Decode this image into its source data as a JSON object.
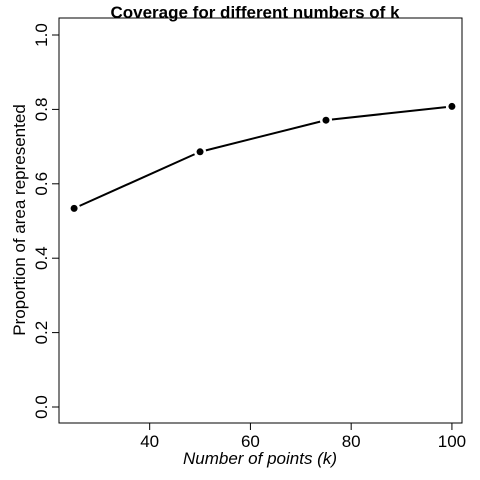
{
  "chart_data": {
    "type": "line",
    "title": "Coverage for different numbers of k",
    "xlabel": "Number of points (k)",
    "ylabel": "Proportion of area represented",
    "x": [
      25,
      50,
      75,
      100
    ],
    "series": [
      {
        "values": [
          0.534,
          0.686,
          0.771,
          0.808
        ]
      }
    ],
    "xlim": [
      22,
      102
    ],
    "ylim": [
      0.0,
      1.0
    ],
    "x_ticks": [
      40,
      60,
      80,
      100
    ],
    "y_ticks": [
      0.0,
      0.2,
      0.4,
      0.6,
      0.8,
      1.0
    ],
    "x_tick_labels": [
      "40",
      "60",
      "80",
      "100"
    ],
    "y_tick_labels": [
      "0.0",
      "0.2",
      "0.4",
      "0.6",
      "0.8",
      "1.0"
    ],
    "grid": false,
    "markers": "filled-circle",
    "line_color": "#000000"
  }
}
